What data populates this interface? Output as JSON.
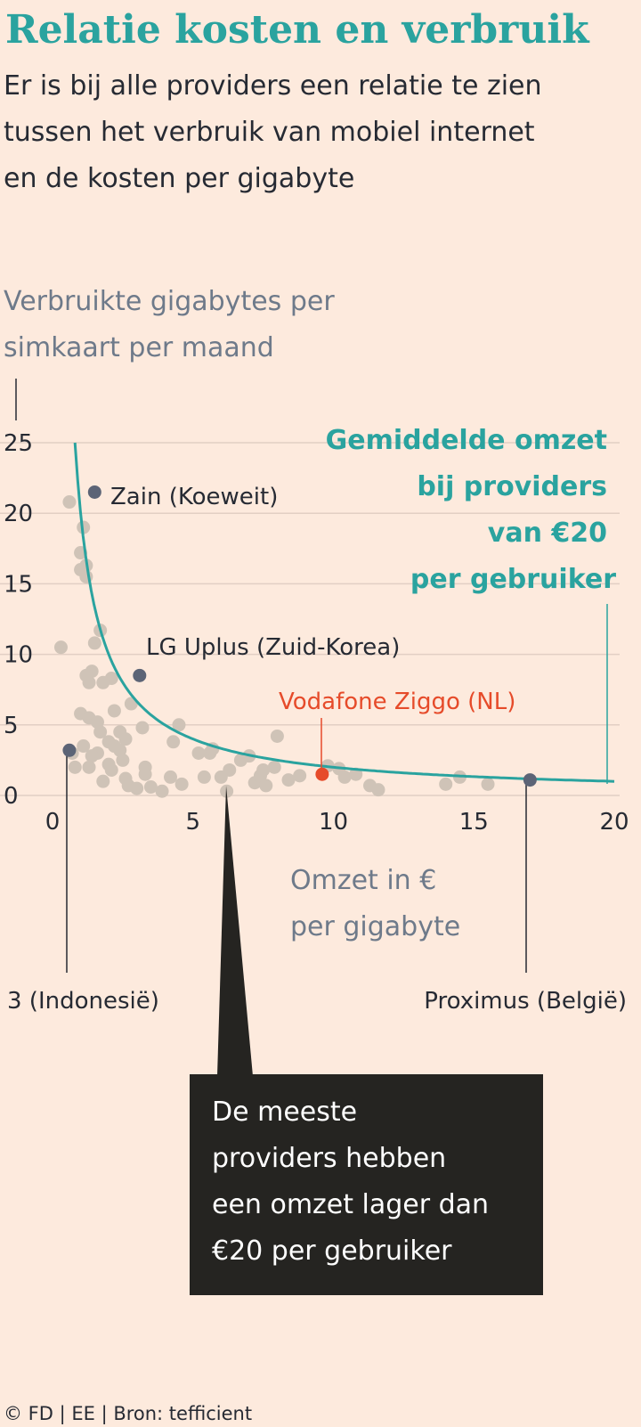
{
  "chart_data": {
    "type": "scatter",
    "title": "Relatie kosten en verbruik",
    "subtitle": [
      "Er is bij alle providers een relatie te zien",
      "tussen het verbruik van mobiel internet",
      "en de kosten per gigabyte"
    ],
    "ylabel": [
      "Verbruikte gigabytes per",
      "simkaart per maand"
    ],
    "xlabel": [
      "Omzet in €",
      "per gigabyte"
    ],
    "xlim": [
      0,
      20
    ],
    "ylim": [
      0,
      25
    ],
    "x_ticks": [
      "0",
      "5",
      "10",
      "15",
      "20"
    ],
    "y_ticks": [
      "0",
      "5",
      "10",
      "15",
      "20",
      "25"
    ],
    "grid": true,
    "points": [
      [
        0.6,
        20.8
      ],
      [
        1.1,
        19.0
      ],
      [
        1.0,
        17.2
      ],
      [
        1.2,
        16.3
      ],
      [
        1.0,
        16.0
      ],
      [
        1.2,
        15.5
      ],
      [
        0.3,
        10.5
      ],
      [
        1.7,
        11.7
      ],
      [
        1.5,
        10.8
      ],
      [
        1.4,
        8.8
      ],
      [
        1.2,
        8.5
      ],
      [
        2.1,
        8.3
      ],
      [
        1.3,
        8.0
      ],
      [
        1.8,
        8.0
      ],
      [
        2.8,
        6.5
      ],
      [
        2.2,
        6.0
      ],
      [
        1.0,
        5.8
      ],
      [
        1.3,
        5.5
      ],
      [
        1.6,
        5.2
      ],
      [
        3.2,
        4.8
      ],
      [
        2.4,
        4.5
      ],
      [
        4.5,
        5.0
      ],
      [
        1.7,
        4.5
      ],
      [
        2.6,
        4.0
      ],
      [
        2.0,
        3.8
      ],
      [
        1.1,
        3.5
      ],
      [
        2.2,
        3.5
      ],
      [
        2.4,
        3.2
      ],
      [
        1.6,
        3.0
      ],
      [
        0.7,
        3.0
      ],
      [
        1.4,
        2.8
      ],
      [
        2.5,
        2.5
      ],
      [
        2.0,
        2.2
      ],
      [
        3.3,
        2.0
      ],
      [
        1.3,
        2.0
      ],
      [
        0.8,
        2.0
      ],
      [
        2.1,
        1.8
      ],
      [
        3.3,
        1.5
      ],
      [
        4.2,
        1.3
      ],
      [
        2.6,
        1.2
      ],
      [
        1.8,
        1.0
      ],
      [
        2.7,
        0.7
      ],
      [
        3.0,
        0.5
      ],
      [
        3.5,
        0.6
      ],
      [
        3.9,
        0.3
      ],
      [
        4.6,
        0.8
      ],
      [
        4.3,
        3.8
      ],
      [
        5.2,
        3.0
      ],
      [
        5.4,
        1.3
      ],
      [
        5.6,
        3.0
      ],
      [
        5.7,
        3.3
      ],
      [
        6.3,
        1.8
      ],
      [
        6.0,
        1.3
      ],
      [
        6.2,
        0.3
      ],
      [
        6.7,
        2.5
      ],
      [
        7.0,
        2.8
      ],
      [
        7.2,
        0.9
      ],
      [
        7.4,
        1.4
      ],
      [
        7.5,
        1.8
      ],
      [
        7.6,
        0.7
      ],
      [
        7.9,
        2.0
      ],
      [
        8.0,
        4.2
      ],
      [
        8.4,
        1.1
      ],
      [
        8.8,
        1.4
      ],
      [
        9.8,
        2.1
      ],
      [
        10.2,
        1.9
      ],
      [
        10.4,
        1.3
      ],
      [
        10.8,
        1.5
      ],
      [
        11.3,
        0.7
      ],
      [
        11.6,
        0.4
      ],
      [
        14.0,
        0.8
      ],
      [
        14.5,
        1.3
      ],
      [
        15.5,
        0.8
      ]
    ],
    "highlights": [
      {
        "label": "Zain (Koeweit)",
        "x": 1.5,
        "y": 21.5
      },
      {
        "label": "LG Uplus (Zuid-Korea)",
        "x": 3.1,
        "y": 8.5
      },
      {
        "label": "Vodafone Ziggo (NL)",
        "x": 9.6,
        "y": 1.5,
        "color": "#e64b2a"
      },
      {
        "label": "3 (Indonesië)",
        "x": 0.6,
        "y": 3.2
      },
      {
        "label": "Proximus (België)",
        "x": 17.0,
        "y": 1.1
      }
    ],
    "curve": {
      "label": [
        "Gemiddelde omzet",
        "bij providers",
        "van €20",
        "per gebruiker"
      ],
      "equation": "y = 20 / x"
    },
    "callout": [
      "De meeste",
      "providers hebben",
      "een omzet lager dan",
      "€20 per gebruiker"
    ]
  },
  "source": "© FD | EE | Bron: tefficient",
  "colors": {
    "background": "#fdeadd",
    "accent": "#2aa39f",
    "highlight_red": "#e64b2a",
    "dots": "#cfc3b7",
    "highlight_dots": "#5c6476"
  }
}
